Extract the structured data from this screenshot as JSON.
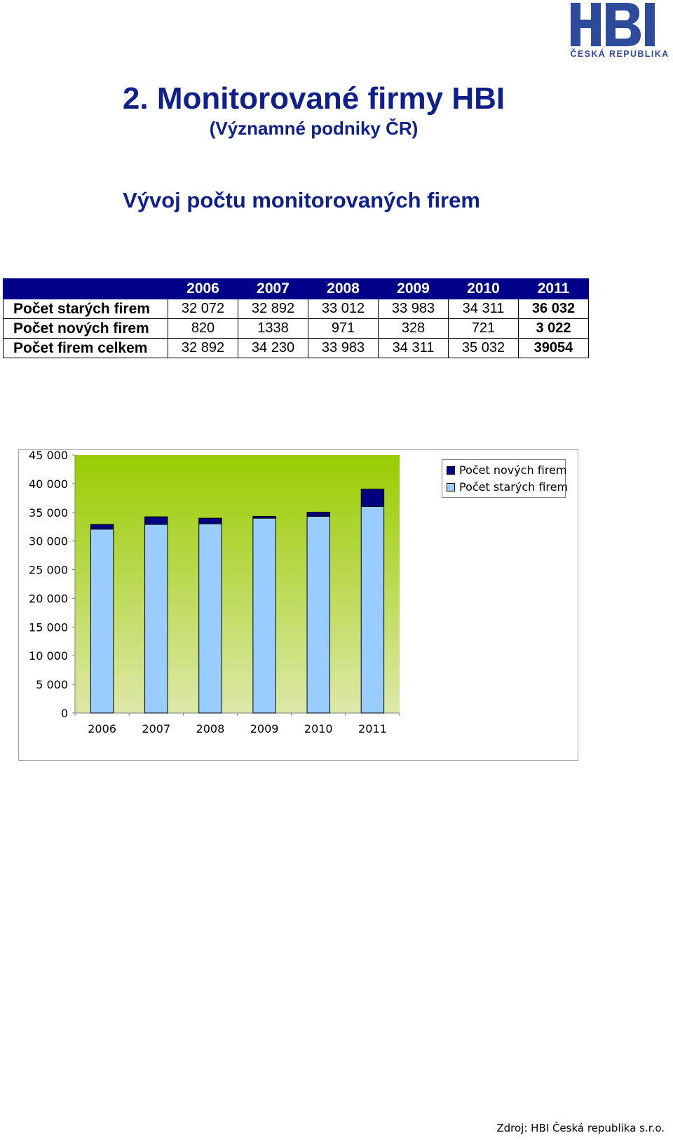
{
  "logo": {
    "text": "HBI",
    "caption": "ČESKÁ REPUBLIKA",
    "color": "#2e4a9a"
  },
  "header": {
    "title": "2. Monitorované firmy HBI",
    "subtitle": "(Významné podniky ČR)",
    "section_heading": "Vývoj počtu monitorovaných firem"
  },
  "table": {
    "columns": [
      "2006",
      "2007",
      "2008",
      "2009",
      "2010",
      "2011"
    ],
    "rows": [
      {
        "label": "Počet starých firem",
        "values": [
          "32 072",
          "32 892",
          "33 012",
          "33 983",
          "34 311",
          "36 032"
        ]
      },
      {
        "label": "Počet nových firem",
        "values": [
          "820",
          "1338",
          "971",
          "328",
          "721",
          "3 022"
        ]
      },
      {
        "label": "Počet firem celkem",
        "values": [
          "32 892",
          "34 230",
          "33 983",
          "34 311",
          "35 032",
          "39054"
        ]
      }
    ]
  },
  "chart_data": {
    "type": "bar",
    "stacked": true,
    "categories": [
      "2006",
      "2007",
      "2008",
      "2009",
      "2010",
      "2011"
    ],
    "series": [
      {
        "name": "Počet starých firem",
        "values": [
          32072,
          32892,
          33012,
          33983,
          34311,
          36032
        ],
        "color": "#99ccff"
      },
      {
        "name": "Počet nových firem",
        "values": [
          820,
          1338,
          971,
          328,
          721,
          3022
        ],
        "color": "#000080"
      }
    ],
    "ylim": [
      0,
      45000
    ],
    "yticks": [
      0,
      5000,
      10000,
      15000,
      20000,
      25000,
      30000,
      35000,
      40000,
      45000
    ],
    "ytick_labels": [
      "0",
      "5 000",
      "10 000",
      "15 000",
      "20 000",
      "25 000",
      "30 000",
      "35 000",
      "40 000",
      "45 000"
    ],
    "legend_position": "top-right",
    "plot_background": {
      "top": "#99cc00",
      "bottom": "#dde8a8"
    },
    "grid": false
  },
  "footer": {
    "source": "Zdroj: HBI Česká republika s.r.o."
  }
}
